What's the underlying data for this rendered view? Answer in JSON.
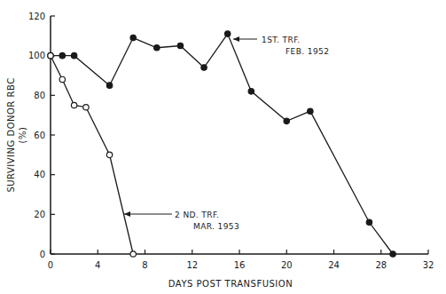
{
  "chart_data": {
    "type": "line",
    "x_label": "DAYS POST TRANSFUSION",
    "y_label": [
      "SURVIVING DONOR RBC",
      "(%)"
    ],
    "xlim": [
      0,
      32
    ],
    "xticks": [
      0,
      4,
      8,
      12,
      16,
      20,
      24,
      28,
      32
    ],
    "ylim": [
      0,
      120
    ],
    "yticks": [
      0,
      20,
      40,
      60,
      80,
      100,
      120
    ],
    "grid": false,
    "series": [
      {
        "color": "#1a1a1a",
        "marker": "filled",
        "line_style": "solid",
        "x": [
          0,
          1,
          2,
          5,
          7,
          9,
          11,
          13,
          15,
          17,
          20,
          22,
          27,
          29
        ],
        "values": [
          100,
          100,
          100,
          85,
          109,
          104,
          105,
          94,
          111,
          82,
          67,
          72,
          16,
          0
        ]
      },
      {
        "color": "#1a1a1a",
        "marker": "open",
        "line_style": "solid",
        "x": [
          0,
          1,
          2,
          3,
          5,
          7
        ],
        "values": [
          100,
          88,
          75,
          74,
          50,
          0
        ]
      }
    ],
    "annotations": [
      [
        "1ST. TRF.",
        "FEB. 1952"
      ],
      [
        "2 ND. TRF.",
        "MAR. 1953"
      ]
    ]
  }
}
